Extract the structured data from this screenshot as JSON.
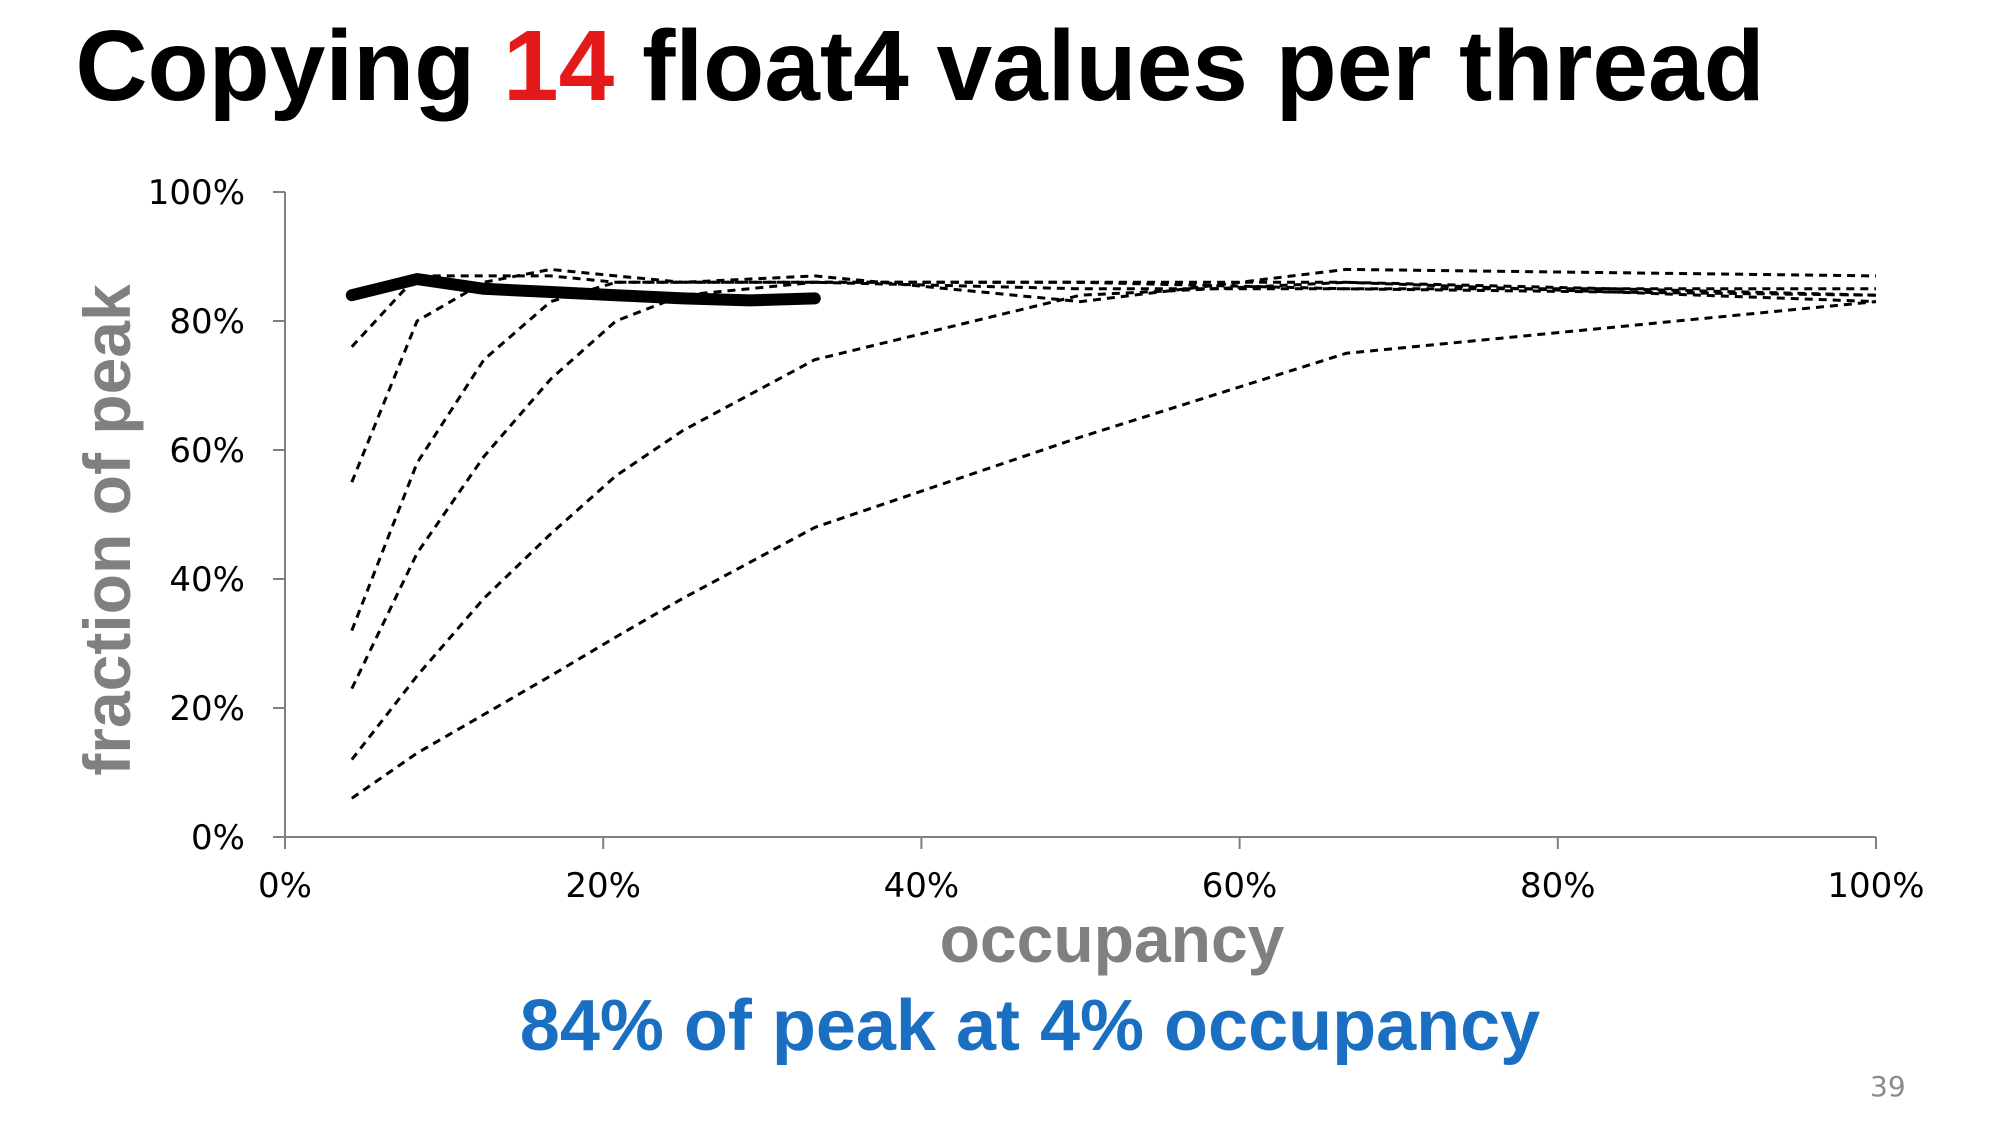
{
  "slide": {
    "title_before": "Copying ",
    "title_highlight": "14",
    "title_after": " float4 values per thread",
    "title_highlight_color": "#e41a1a",
    "caption": "84% of peak at 4% occupancy",
    "caption_color": "#1a6fc2",
    "page_number": "39"
  },
  "chart_data": {
    "type": "line",
    "title": "",
    "xlabel": "occupancy",
    "ylabel": "fraction of peak",
    "xlim": [
      0,
      100
    ],
    "ylim": [
      0,
      100
    ],
    "x_ticks": [
      "0%",
      "20%",
      "40%",
      "60%",
      "80%",
      "100%"
    ],
    "y_ticks": [
      "0%",
      "20%",
      "40%",
      "60%",
      "80%",
      "100%"
    ],
    "x_tick_values": [
      0,
      20,
      40,
      60,
      80,
      100
    ],
    "y_tick_values": [
      0,
      20,
      40,
      60,
      80,
      100
    ],
    "grid": false,
    "legend": "none",
    "axis_title_color": "#808080",
    "series": [
      {
        "style": "dashed",
        "x": [
          4.2,
          8.3,
          12.5,
          16.7,
          20.8,
          25,
          33.3,
          50,
          66.7,
          100
        ],
        "y": [
          76,
          87,
          87,
          87,
          86,
          86,
          86,
          86,
          85,
          85
        ]
      },
      {
        "style": "dashed",
        "x": [
          4.2,
          8.3,
          12.5,
          16.7,
          20.8,
          25,
          33.3,
          50,
          66.7,
          100
        ],
        "y": [
          55,
          80,
          86,
          88,
          87,
          86,
          86,
          85,
          85,
          84
        ]
      },
      {
        "style": "dashed",
        "x": [
          4.2,
          8.3,
          12.5,
          16.7,
          20.8,
          25,
          33.3,
          50,
          66.7,
          100
        ],
        "y": [
          32,
          58,
          74,
          83,
          86,
          86,
          87,
          83,
          88,
          87
        ]
      },
      {
        "style": "dashed",
        "x": [
          4.2,
          8.3,
          12.5,
          16.7,
          20.8,
          25,
          33.3,
          50,
          66.7,
          100
        ],
        "y": [
          23,
          44,
          59,
          71,
          80,
          84,
          86,
          86,
          86,
          83
        ]
      },
      {
        "style": "dashed",
        "x": [
          4.2,
          8.3,
          12.5,
          16.7,
          20.8,
          25,
          33.3,
          50,
          66.7,
          100
        ],
        "y": [
          12,
          25,
          37,
          47,
          56,
          63,
          74,
          84,
          86,
          84
        ]
      },
      {
        "style": "dashed",
        "x": [
          4.2,
          8.3,
          12.5,
          16.7,
          20.8,
          25,
          33.3,
          50,
          66.7,
          100
        ],
        "y": [
          6,
          13,
          19,
          25,
          31,
          37,
          48,
          62,
          75,
          83
        ]
      },
      {
        "style": "bold",
        "x": [
          4.2,
          8.3,
          12.5,
          16.7,
          20.8,
          25,
          29.2,
          33.3
        ],
        "y": [
          84,
          86.5,
          85,
          84.5,
          84,
          83.5,
          83.2,
          83.5
        ]
      }
    ]
  }
}
